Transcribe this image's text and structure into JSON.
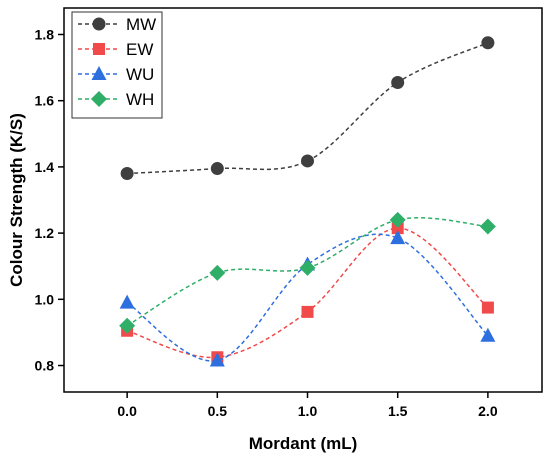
{
  "chart_data": {
    "type": "line",
    "xlabel": "Mordant (mL)",
    "ylabel": "Colour Strength (K/S)",
    "x": [
      0.0,
      0.5,
      1.0,
      1.5,
      2.0
    ],
    "x_tick_labels": [
      "0.0",
      "0.5",
      "1.0",
      "1.5",
      "2.0"
    ],
    "xlim": [
      -0.35,
      2.3
    ],
    "ylim": [
      0.72,
      1.88
    ],
    "y_ticks": [
      0.8,
      1.0,
      1.2,
      1.4,
      1.6,
      1.8
    ],
    "y_tick_labels": [
      "0.8",
      "1.0",
      "1.2",
      "1.4",
      "1.6",
      "1.8"
    ],
    "grid": false,
    "legend_position": "top-left",
    "line_style": "dashed, smoothed",
    "series": [
      {
        "name": "MW",
        "color": "#3f3f3f",
        "marker": "circle",
        "values": [
          1.38,
          1.395,
          1.418,
          1.655,
          1.775
        ]
      },
      {
        "name": "EW",
        "color": "#f04a4a",
        "marker": "square",
        "values": [
          0.905,
          0.825,
          0.962,
          1.215,
          0.975
        ]
      },
      {
        "name": "WU",
        "color": "#2e6fe0",
        "marker": "triangle",
        "values": [
          0.99,
          0.815,
          1.105,
          1.185,
          0.89
        ]
      },
      {
        "name": "WH",
        "color": "#2fae68",
        "marker": "diamond",
        "values": [
          0.92,
          1.08,
          1.095,
          1.24,
          1.22
        ]
      }
    ]
  }
}
